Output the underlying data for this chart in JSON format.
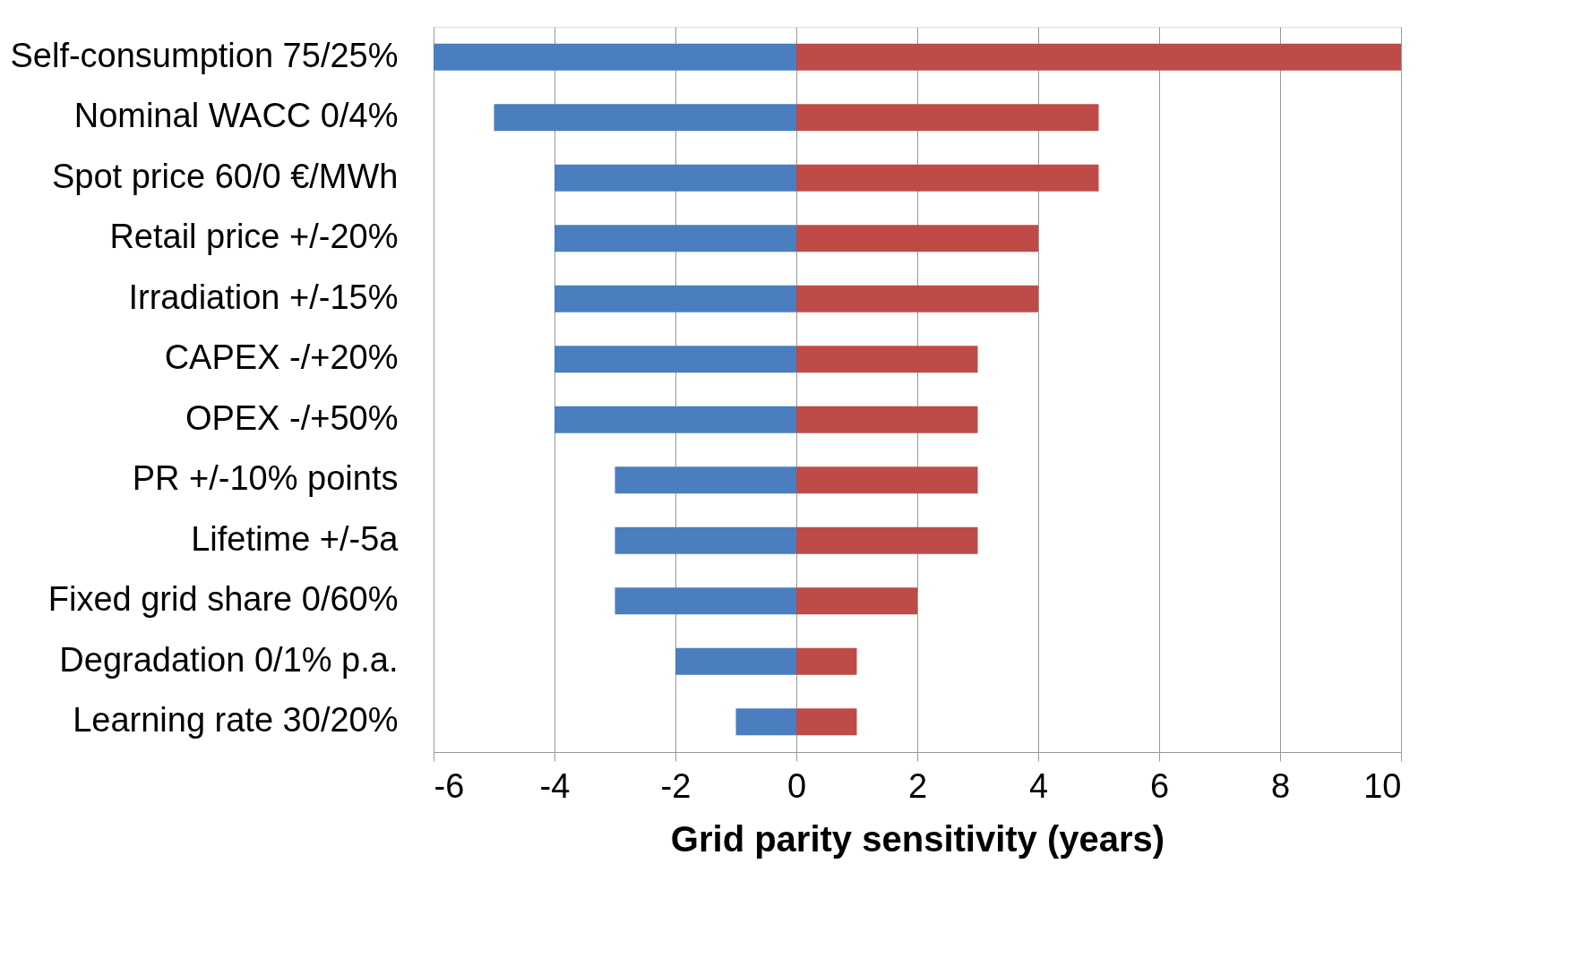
{
  "chart_data": {
    "type": "bar",
    "orientation": "horizontal",
    "xlabel": "Grid parity sensitivity (years)",
    "categories": [
      "Self-consumption 75/25%",
      "Nominal WACC 0/4%",
      "Spot price 60/0 €/MWh",
      "Retail price +/-20%",
      "Irradiation +/-15%",
      "CAPEX -/+20%",
      "OPEX -/+50%",
      "PR +/-10% points",
      "Lifetime +/-5a",
      "Fixed grid share 0/60%",
      "Degradation 0/1% p.a.",
      "Learning rate 30/20%"
    ],
    "series": [
      {
        "color": "#4a7ebf",
        "values": [
          -6,
          -5,
          -4,
          -4,
          -4,
          -4,
          -4,
          -3,
          -3,
          -3,
          -2,
          -1
        ]
      },
      {
        "color": "#be4b48",
        "values": [
          10,
          5,
          5,
          4,
          4,
          3,
          3,
          3,
          3,
          2,
          1,
          1
        ]
      }
    ],
    "stacked": true,
    "xlim": [
      -6,
      10
    ],
    "xticks": [
      -6,
      -4,
      -2,
      0,
      2,
      4,
      6,
      8,
      10
    ],
    "grid": "x"
  }
}
